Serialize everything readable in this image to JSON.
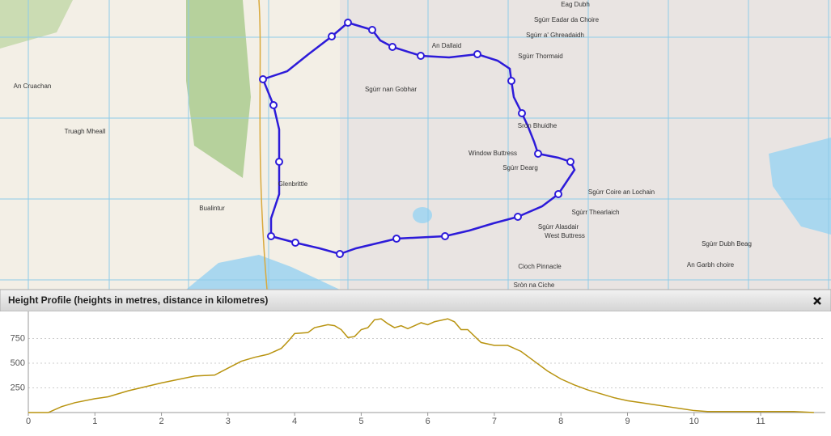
{
  "map": {
    "labels": [
      "An Cruachan",
      "Truagh Mheall",
      "Bualintur",
      "Glenbrittle",
      "An Dallaid",
      "Sgùrr Thormaid",
      "Sgùrr nan Gobhar",
      "Sròn Bhuidhe",
      "Window Buttress",
      "Sgùrr Dearg",
      "Sgùrr Coire an Lochain",
      "Sgùrr Thearlaich",
      "Sgùrr Alasdair",
      "West Buttress",
      "Cioch Pinnacle",
      "Sròn na Ciche",
      "Sgùrr Dubh Beag",
      "An Garbh choire",
      "Sgùrr a' Ghreadaidh",
      "Eag Dubh",
      "Sgùrr Eadar da Choire"
    ]
  },
  "panel": {
    "title": "Height Profile (heights in metres, distance in kilometres)"
  },
  "chart_data": {
    "type": "line",
    "color": "#b8930f",
    "grid": true,
    "x": [
      0,
      0.3,
      0.5,
      0.7,
      1,
      1.2,
      1.5,
      2,
      2.5,
      2.8,
      3,
      3.2,
      3.4,
      3.6,
      3.8,
      3.9,
      4.0,
      4.2,
      4.3,
      4.5,
      4.6,
      4.7,
      4.8,
      4.9,
      5.0,
      5.1,
      5.2,
      5.3,
      5.4,
      5.5,
      5.6,
      5.7,
      5.8,
      5.9,
      6.0,
      6.1,
      6.3,
      6.4,
      6.5,
      6.6,
      6.8,
      7.0,
      7.2,
      7.4,
      7.6,
      7.8,
      8.0,
      8.2,
      8.4,
      8.6,
      8.8,
      9.0,
      9.2,
      9.4,
      9.6,
      9.8,
      10,
      10.2,
      10.5,
      11,
      11.5,
      11.8
    ],
    "values": [
      0,
      0,
      60,
      100,
      140,
      160,
      220,
      300,
      370,
      380,
      450,
      520,
      560,
      590,
      650,
      720,
      800,
      810,
      860,
      890,
      880,
      840,
      760,
      770,
      840,
      860,
      940,
      950,
      900,
      860,
      880,
      850,
      880,
      910,
      890,
      920,
      950,
      920,
      840,
      840,
      710,
      680,
      680,
      620,
      520,
      420,
      340,
      280,
      230,
      190,
      150,
      120,
      100,
      80,
      60,
      40,
      20,
      10,
      10,
      10,
      10,
      0
    ],
    "xlim": [
      0,
      11.85
    ],
    "ylim": [
      0,
      1000
    ],
    "xticks": [
      0,
      1,
      2,
      3,
      4,
      5,
      6,
      7,
      8,
      9,
      10,
      11
    ],
    "yticks": [
      250,
      500,
      750
    ]
  }
}
